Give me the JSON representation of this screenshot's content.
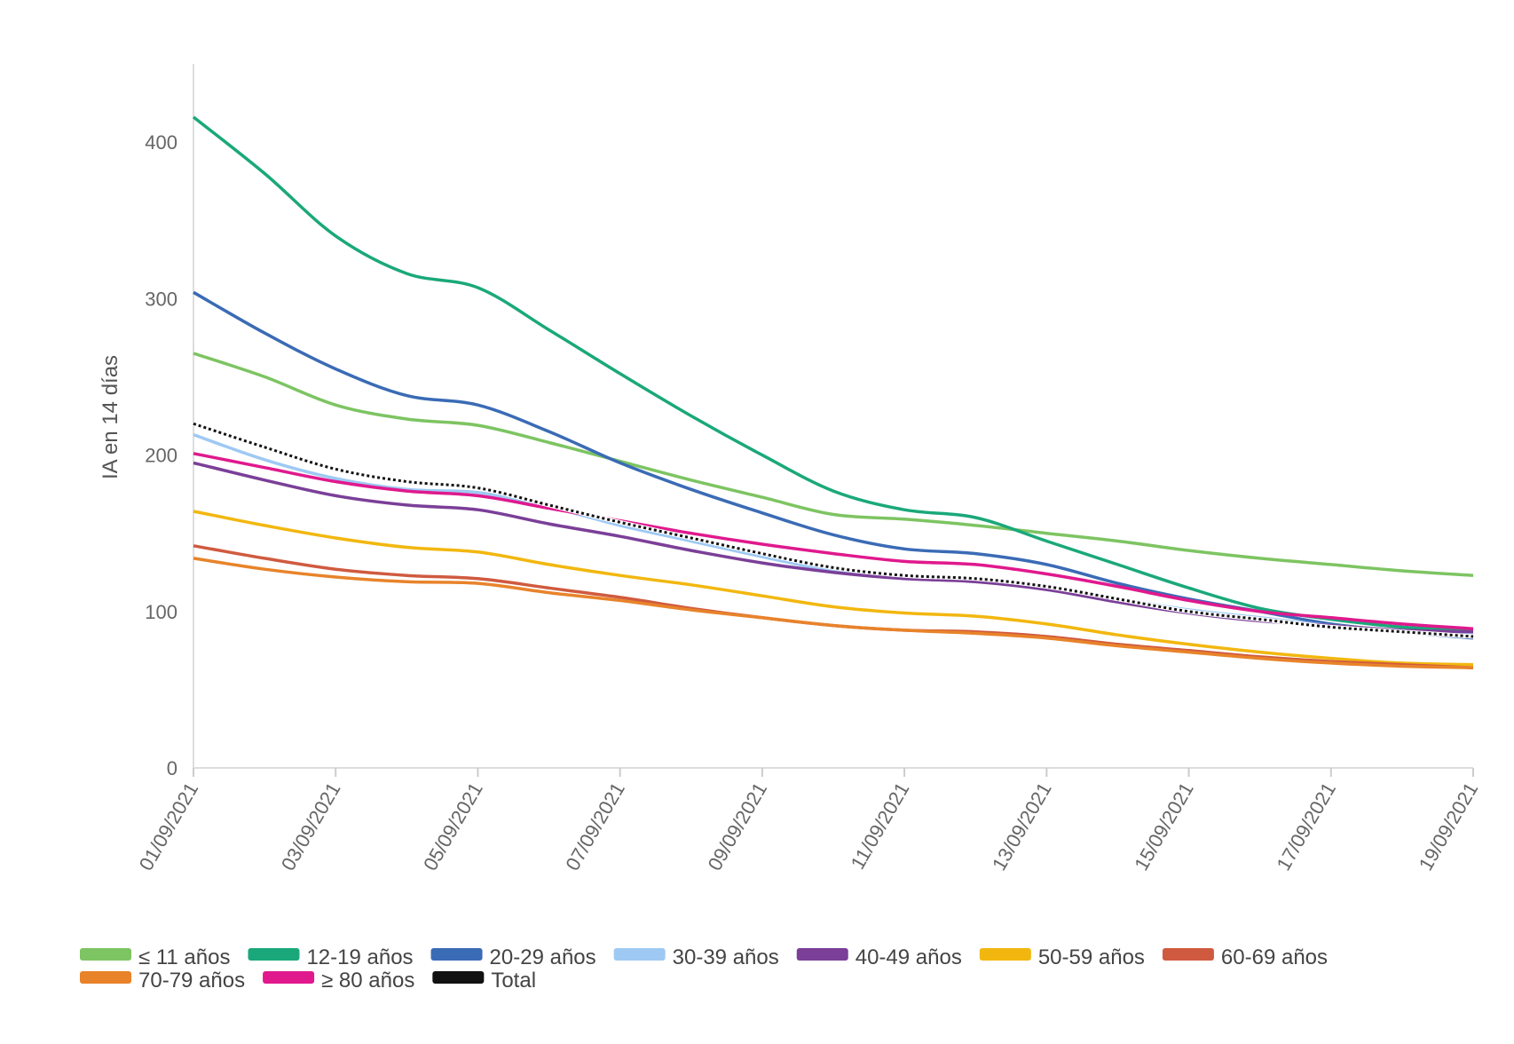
{
  "chart_data": {
    "type": "line",
    "ylabel": "IA en 14 días",
    "xlabel": "",
    "ylim": [
      0,
      450
    ],
    "yticks": [
      0,
      100,
      200,
      300,
      400
    ],
    "grid": false,
    "legend_position": "bottom",
    "x": [
      "01/09/2021",
      "02/09/2021",
      "03/09/2021",
      "04/09/2021",
      "05/09/2021",
      "06/09/2021",
      "07/09/2021",
      "08/09/2021",
      "09/09/2021",
      "10/09/2021",
      "11/09/2021",
      "12/09/2021",
      "13/09/2021",
      "14/09/2021",
      "15/09/2021",
      "16/09/2021",
      "17/09/2021",
      "18/09/2021",
      "19/09/2021"
    ],
    "xtick_labels": [
      "01/09/2021",
      "03/09/2021",
      "05/09/2021",
      "07/09/2021",
      "09/09/2021",
      "11/09/2021",
      "13/09/2021",
      "15/09/2021",
      "17/09/2021",
      "19/09/2021"
    ],
    "series": [
      {
        "name": "≤ 11 años",
        "color": "#7dc462",
        "values": [
          265,
          250,
          232,
          223,
          219,
          208,
          196,
          184,
          173,
          162,
          159,
          155,
          150,
          145,
          139,
          134,
          130,
          126,
          123
        ]
      },
      {
        "name": "12-19 años",
        "color": "#1aa87a",
        "values": [
          416,
          380,
          340,
          316,
          307,
          280,
          252,
          225,
          200,
          177,
          165,
          160,
          145,
          130,
          115,
          102,
          95,
          90,
          88
        ]
      },
      {
        "name": "20-29 años",
        "color": "#3a6bb5",
        "values": [
          304,
          278,
          255,
          238,
          232,
          215,
          195,
          178,
          163,
          149,
          140,
          137,
          130,
          118,
          108,
          100,
          92,
          87,
          83
        ]
      },
      {
        "name": "30-39 años",
        "color": "#9ec9f3",
        "values": [
          213,
          197,
          185,
          178,
          176,
          167,
          155,
          145,
          135,
          126,
          122,
          119,
          115,
          108,
          101,
          96,
          91,
          88,
          85
        ]
      },
      {
        "name": "40-49 años",
        "color": "#7b3f98",
        "values": [
          195,
          184,
          174,
          168,
          165,
          156,
          148,
          139,
          131,
          125,
          121,
          119,
          114,
          106,
          99,
          94,
          91,
          88,
          87
        ]
      },
      {
        "name": "50-59 años",
        "color": "#f2b70f",
        "values": [
          164,
          155,
          147,
          141,
          138,
          130,
          123,
          117,
          110,
          103,
          99,
          97,
          92,
          85,
          79,
          74,
          70,
          67,
          66
        ]
      },
      {
        "name": "60-69 años",
        "color": "#d05a3f",
        "values": [
          142,
          134,
          127,
          123,
          121,
          115,
          109,
          102,
          96,
          91,
          88,
          87,
          84,
          79,
          75,
          71,
          68,
          66,
          64
        ]
      },
      {
        "name": "70-79 años",
        "color": "#e8832a",
        "values": [
          134,
          127,
          122,
          119,
          118,
          112,
          107,
          101,
          96,
          91,
          88,
          86,
          83,
          78,
          74,
          70,
          67,
          65,
          64
        ]
      },
      {
        "name": "≥ 80 años",
        "color": "#e0198d",
        "values": [
          201,
          192,
          183,
          177,
          174,
          166,
          158,
          150,
          143,
          137,
          132,
          130,
          124,
          116,
          107,
          100,
          96,
          92,
          89
        ]
      },
      {
        "name": "Total",
        "color": "#111111",
        "dashed": true,
        "values": [
          220,
          205,
          191,
          183,
          179,
          168,
          157,
          147,
          137,
          128,
          123,
          121,
          116,
          108,
          100,
          95,
          90,
          87,
          84
        ]
      }
    ]
  }
}
